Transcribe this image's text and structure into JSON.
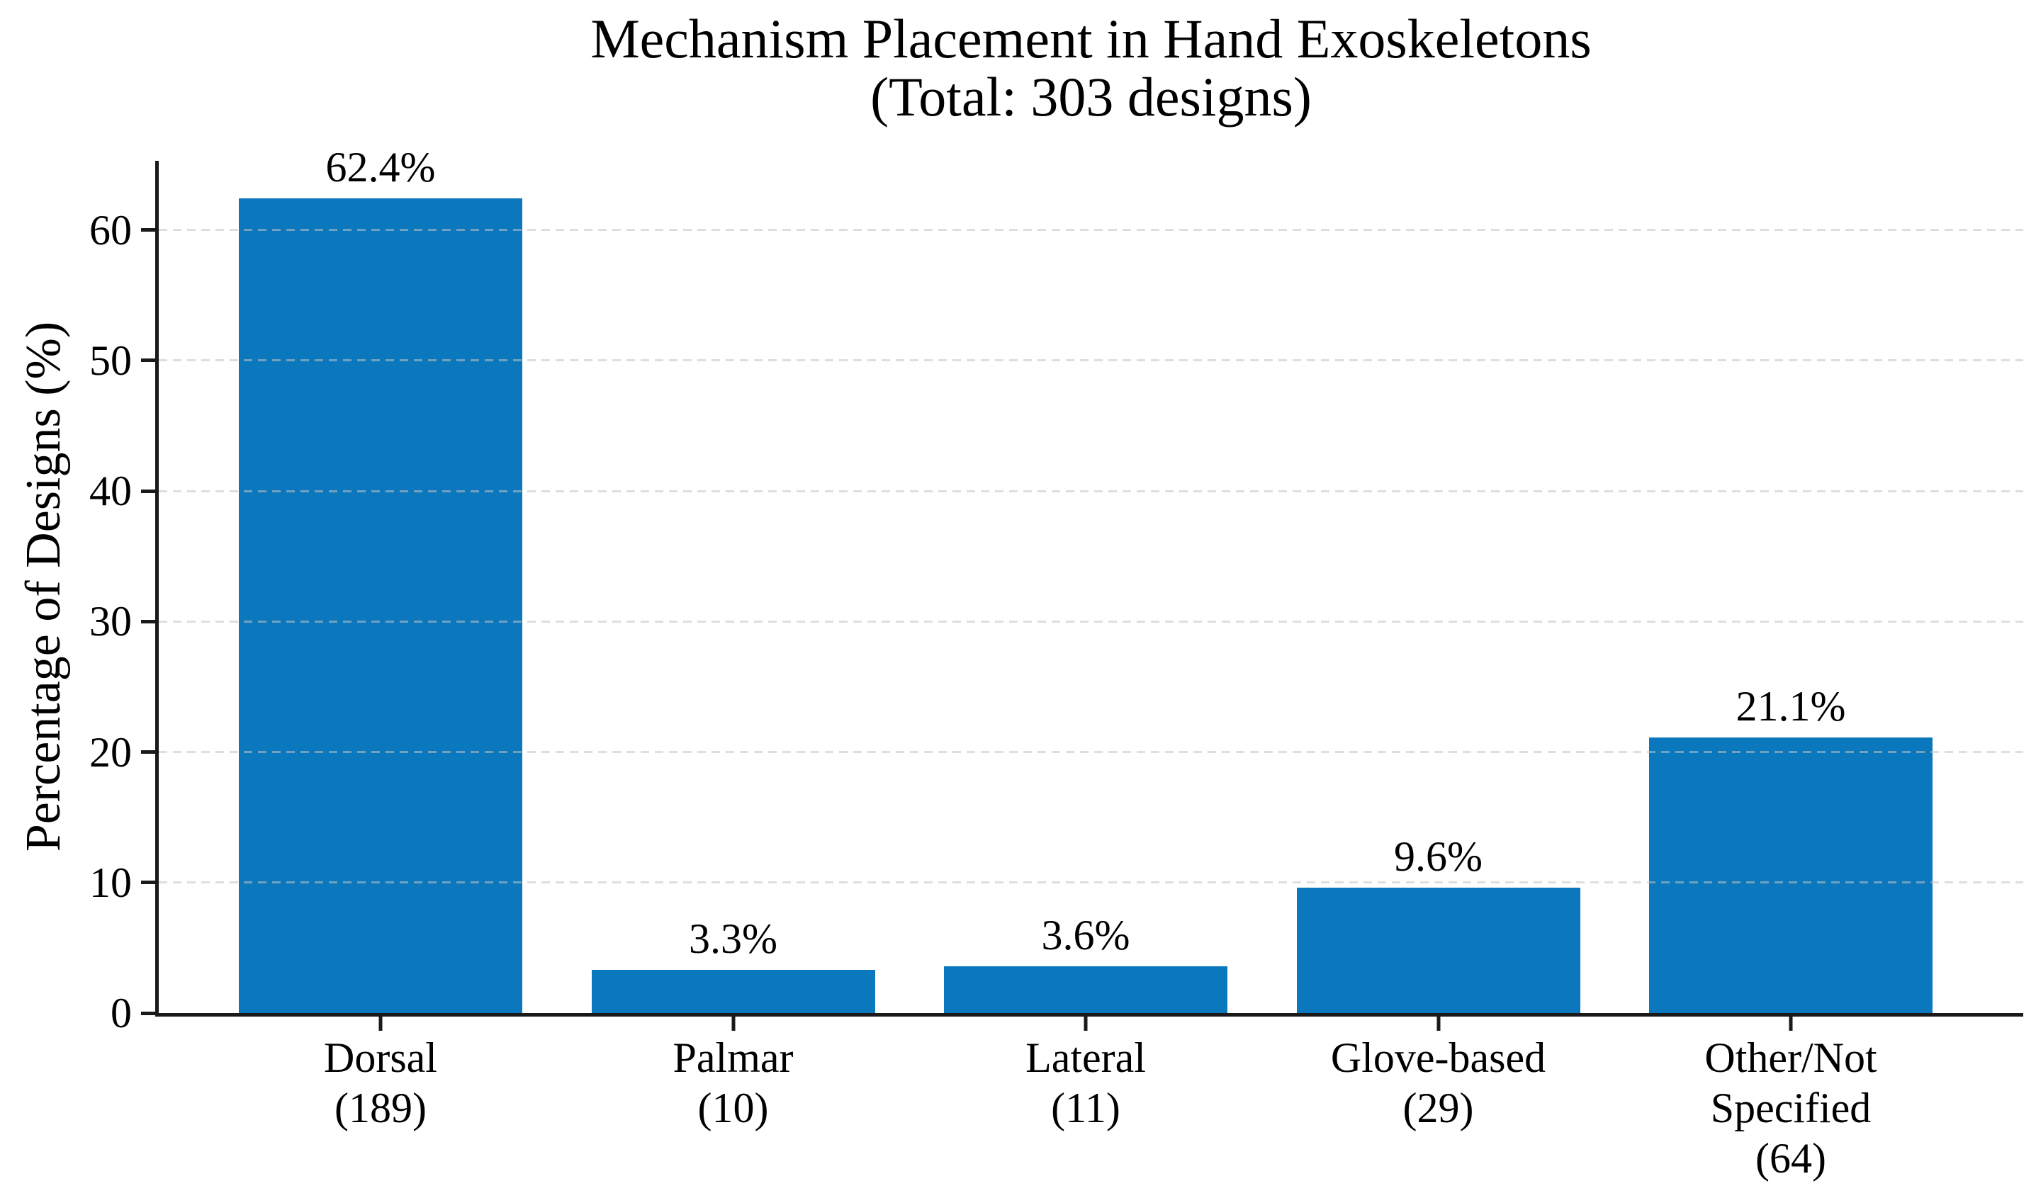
{
  "chart_data": {
    "type": "bar",
    "title": "Mechanism Placement in Hand Exoskeletons\n(Total: 303 designs)",
    "xlabel": "",
    "ylabel": "Percentage of Designs (%)",
    "total_designs": 303,
    "categories": [
      "Dorsal",
      "Palmar",
      "Lateral",
      "Glove-based",
      "Other/Not Specified"
    ],
    "counts": [
      189,
      10,
      11,
      29,
      64
    ],
    "values": [
      62.4,
      3.3,
      3.6,
      9.6,
      21.1
    ],
    "value_labels": [
      "62.4%",
      "3.3%",
      "3.6%",
      "9.6%",
      "21.1%"
    ],
    "x_tick_labels": [
      "Dorsal\n(189)",
      "Palmar\n(10)",
      "Lateral\n(11)",
      "Glove-based\n(29)",
      "Other/Not\nSpecified\n(64)"
    ],
    "yticks": [
      0,
      10,
      20,
      30,
      40,
      50,
      60
    ],
    "ylim": [
      0,
      65.3
    ],
    "grid": "horizontal-dashed",
    "legend": null,
    "bar_color": "#0b78bd",
    "axis_color": "#1a1a1a",
    "grid_color": "#c3c3c3"
  }
}
